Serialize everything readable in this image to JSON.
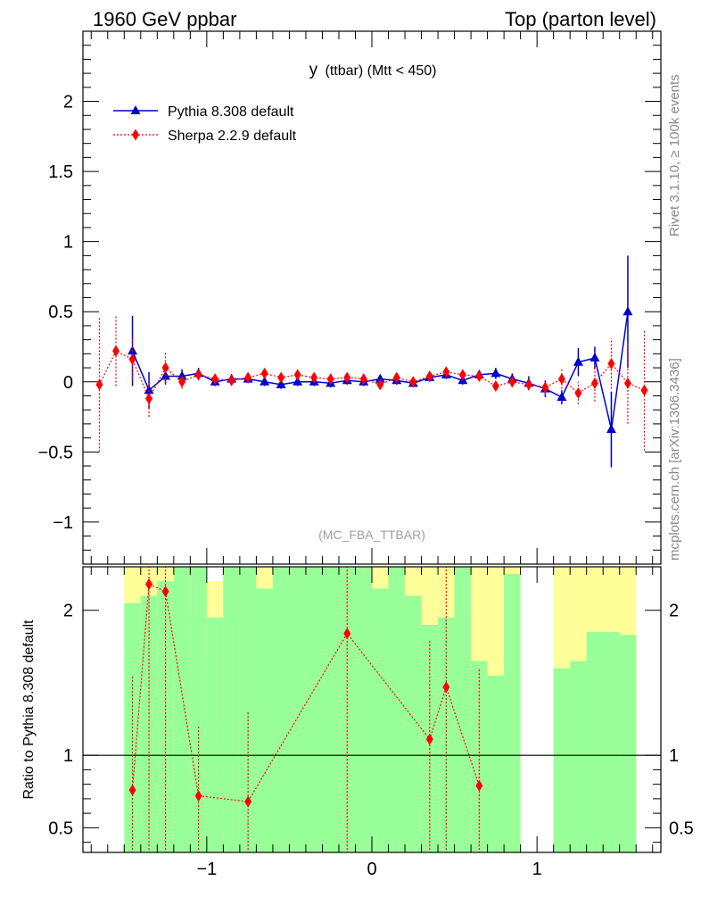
{
  "header": {
    "left": "1960 GeV ppbar",
    "right": "Top (parton level)"
  },
  "side_labels": {
    "rivet": "Rivet 3.1.10, ≥ 100k events",
    "mcplots": "mcplots.cern.ch [arXiv:1306.3436]"
  },
  "chart_data": [
    {
      "type": "line",
      "title": "y (ttbar) (Mtt < 450)",
      "title_main": "y",
      "title_sub": "(ttbar) (Mtt < 450)",
      "watermark": "(MC_FBA_TTBAR)",
      "xlim": [
        -1.75,
        1.75
      ],
      "ylim": [
        -1.3,
        2.5
      ],
      "yticks": [
        -1,
        -0.5,
        0,
        0.5,
        1,
        1.5,
        2
      ],
      "ytick_labels": [
        "−1",
        "−0.5",
        "0",
        "0.5",
        "1",
        "1.5",
        "2"
      ],
      "legend": "top-left",
      "series": [
        {
          "name": "Pythia 8.308 default",
          "color": "#0000cc",
          "marker": "triangle",
          "linestyle": "solid",
          "x": [
            -1.45,
            -1.35,
            -1.25,
            -1.15,
            -1.05,
            -0.95,
            -0.85,
            -0.75,
            -0.65,
            -0.55,
            -0.45,
            -0.35,
            -0.25,
            -0.15,
            -0.05,
            0.05,
            0.15,
            0.25,
            0.35,
            0.45,
            0.55,
            0.65,
            0.75,
            0.85,
            0.95,
            1.05,
            1.15,
            1.25,
            1.35,
            1.45,
            1.55
          ],
          "y": [
            0.22,
            -0.06,
            0.04,
            0.04,
            0.06,
            0.0,
            0.02,
            0.02,
            0.0,
            -0.02,
            0.0,
            0.0,
            -0.01,
            0.01,
            0.0,
            0.02,
            0.01,
            -0.01,
            0.03,
            0.05,
            0.01,
            0.05,
            0.06,
            0.02,
            -0.01,
            -0.05,
            -0.11,
            0.14,
            0.17,
            -0.34,
            0.5
          ],
          "yerr": [
            0.25,
            0.13,
            0.06,
            0.05,
            0.04,
            0.03,
            0.03,
            0.03,
            0.03,
            0.03,
            0.03,
            0.03,
            0.03,
            0.03,
            0.03,
            0.03,
            0.03,
            0.03,
            0.03,
            0.03,
            0.03,
            0.03,
            0.04,
            0.04,
            0.05,
            0.06,
            0.05,
            0.1,
            0.08,
            0.27,
            0.4
          ]
        },
        {
          "name": "Sherpa 2.2.9 default",
          "color": "#ff0000",
          "marker": "diamond",
          "linestyle": "dotted",
          "x": [
            -1.65,
            -1.55,
            -1.45,
            -1.35,
            -1.25,
            -1.15,
            -1.05,
            -0.95,
            -0.85,
            -0.75,
            -0.65,
            -0.55,
            -0.45,
            -0.35,
            -0.25,
            -0.15,
            -0.05,
            0.05,
            0.15,
            0.25,
            0.35,
            0.45,
            0.55,
            0.65,
            0.75,
            0.85,
            0.95,
            1.05,
            1.15,
            1.25,
            1.35,
            1.45,
            1.55,
            1.65
          ],
          "y": [
            -0.02,
            0.22,
            0.16,
            -0.12,
            0.1,
            0.0,
            0.05,
            0.02,
            0.01,
            0.03,
            0.06,
            0.03,
            0.05,
            0.03,
            0.02,
            0.03,
            0.02,
            -0.02,
            0.03,
            0.0,
            0.04,
            0.07,
            0.05,
            0.04,
            -0.03,
            0.0,
            -0.02,
            -0.04,
            0.02,
            -0.08,
            -0.01,
            0.13,
            -0.01,
            -0.06
          ],
          "yerr": [
            0.48,
            0.25,
            0.15,
            0.13,
            0.11,
            0.05,
            0.04,
            0.03,
            0.03,
            0.03,
            0.03,
            0.03,
            0.03,
            0.03,
            0.03,
            0.03,
            0.03,
            0.03,
            0.03,
            0.03,
            0.03,
            0.03,
            0.03,
            0.03,
            0.03,
            0.04,
            0.04,
            0.05,
            0.07,
            0.08,
            0.13,
            0.18,
            0.29,
            0.43
          ]
        }
      ]
    },
    {
      "type": "line",
      "ylabel": "Ratio to Pythia 8.308 default",
      "xlim": [
        -1.75,
        1.75
      ],
      "ylim": [
        0.33,
        2.3
      ],
      "xticks": [
        -1,
        0,
        1
      ],
      "xtick_labels": [
        "−1",
        "0",
        "1"
      ],
      "yticks": [
        0.5,
        1,
        2
      ],
      "ytick_labels": [
        "0.5",
        "1",
        "2"
      ],
      "reference_line": 1,
      "bands": {
        "bin_edges": [
          -1.5,
          -1.4,
          -1.3,
          -1.2,
          -1.1,
          -1.0,
          -0.9,
          -0.8,
          -0.7,
          -0.6,
          -0.5,
          -0.4,
          -0.3,
          -0.2,
          -0.1,
          0.0,
          0.1,
          0.2,
          0.3,
          0.4,
          0.5,
          0.6,
          0.7,
          0.8,
          0.9,
          1.0,
          1.1,
          1.2,
          1.3,
          1.4,
          1.5,
          1.6
        ],
        "green": [
          [
            0.3,
            2.05
          ],
          [
            0.3,
            2.1
          ],
          [
            0.3,
            2.2
          ],
          [
            0.3,
            2.4
          ],
          [
            0.3,
            2.4
          ],
          [
            0.3,
            1.95
          ],
          [
            0.3,
            2.3
          ],
          [
            0.3,
            2.4
          ],
          [
            0.3,
            2.15
          ],
          [
            0.3,
            2.4
          ],
          [
            0.3,
            2.4
          ],
          [
            0.3,
            2.4
          ],
          [
            0.3,
            2.4
          ],
          [
            0.3,
            2.4
          ],
          [
            0.3,
            2.4
          ],
          [
            0.3,
            2.15
          ],
          [
            0.3,
            2.4
          ],
          [
            0.3,
            2.1
          ],
          [
            0.3,
            1.9
          ],
          [
            0.3,
            1.95
          ],
          [
            0.3,
            2.4
          ],
          [
            0.3,
            1.65
          ],
          [
            0.3,
            1.55
          ],
          [
            0.3,
            2.25
          ],
          [
            null,
            null
          ],
          [
            null,
            null
          ],
          [
            0.3,
            1.6
          ],
          [
            0.3,
            1.65
          ],
          [
            0.3,
            1.85
          ],
          [
            0.3,
            1.85
          ],
          [
            0.3,
            1.83
          ]
        ],
        "yellow": [
          [
            0.3,
            2.4
          ],
          [
            0.3,
            2.4
          ],
          [
            0.3,
            2.4
          ],
          [
            0.3,
            2.4
          ],
          [
            0.3,
            2.4
          ],
          [
            0.3,
            2.2
          ],
          [
            0.3,
            2.4
          ],
          [
            0.3,
            2.4
          ],
          [
            0.3,
            2.4
          ],
          [
            0.3,
            2.4
          ],
          [
            0.3,
            2.4
          ],
          [
            0.3,
            2.4
          ],
          [
            0.3,
            2.4
          ],
          [
            0.3,
            2.4
          ],
          [
            0.3,
            2.4
          ],
          [
            0.3,
            2.4
          ],
          [
            0.3,
            2.4
          ],
          [
            0.3,
            2.4
          ],
          [
            0.3,
            2.4
          ],
          [
            0.3,
            2.4
          ],
          [
            0.3,
            2.4
          ],
          [
            0.3,
            2.4
          ],
          [
            0.3,
            2.4
          ],
          [
            0.3,
            2.4
          ],
          [
            null,
            null
          ],
          [
            null,
            null
          ],
          [
            0.3,
            2.4
          ],
          [
            0.3,
            2.4
          ],
          [
            0.3,
            2.4
          ],
          [
            0.3,
            2.4
          ],
          [
            0.3,
            2.4
          ]
        ],
        "green_color": "#99ff99",
        "yellow_color": "#ffff99"
      },
      "series": [
        {
          "name": "Sherpa 2.2.9 default",
          "color": "#ff0000",
          "marker": "diamond",
          "linestyle": "dotted",
          "x": [
            -1.45,
            -1.35,
            -1.25,
            -1.05,
            -0.75,
            -0.15,
            0.35,
            0.45,
            0.65
          ],
          "y": [
            0.76,
            2.18,
            2.13,
            0.72,
            0.68,
            1.84,
            1.11,
            1.47,
            0.79
          ],
          "ylow": [
            0.2,
            0.2,
            0.2,
            0.2,
            0.2,
            0.2,
            0.2,
            0.2,
            0.2
          ],
          "yhigh": [
            1.55,
            2.4,
            2.4,
            1.2,
            1.3,
            2.4,
            1.8,
            2.4,
            1.6
          ]
        }
      ]
    }
  ]
}
